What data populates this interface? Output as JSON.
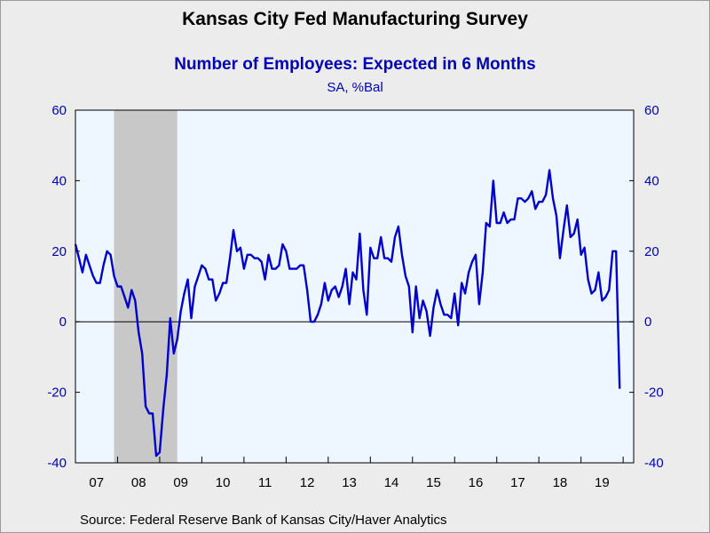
{
  "title": "Kansas City Fed Manufacturing Survey",
  "subtitle": "Number of Employees: Expected in 6 Months",
  "units": "SA, %Bal",
  "source": "Source:  Federal Reserve Bank of Kansas City/Haver Analytics",
  "colors": {
    "line": "#0000cc",
    "axis_text": "#0000b4",
    "plot_bg": "#eef6ff",
    "recession": "#c8c8c8"
  },
  "chart_data": {
    "type": "line",
    "title": "Number of Employees: Expected in 6 Months",
    "ylabel": "SA, %Bal",
    "ylim": [
      -40,
      60
    ],
    "yticks": [
      60,
      40,
      20,
      0,
      -20,
      -40
    ],
    "ytick_labels": [
      "60",
      "40",
      "20",
      "0",
      "-20",
      "-40"
    ],
    "dual_axis": true,
    "grid": false,
    "zero_line": true,
    "x_tick_labels": [
      "07",
      "08",
      "09",
      "10",
      "11",
      "12",
      "13",
      "14",
      "15",
      "16",
      "17",
      "18",
      "19"
    ],
    "x_start": "2007-01",
    "x_end": "2020-04",
    "recession": {
      "start": "2007-12",
      "end": "2009-06"
    },
    "series": [
      {
        "frequency": "monthly",
        "start": "2007-01",
        "values": [
          22,
          18,
          14,
          19,
          16,
          13,
          11,
          11,
          16,
          20,
          19,
          13,
          10,
          10,
          7,
          4,
          9,
          6,
          -3,
          -9,
          -24,
          -26,
          -26,
          -38,
          -37,
          -25,
          -15,
          1,
          -9,
          -5,
          3,
          8,
          12,
          1,
          10,
          13,
          16,
          15,
          12,
          12,
          6,
          8,
          11,
          11,
          18,
          26,
          20,
          21,
          15,
          19,
          19,
          18,
          18,
          17,
          12,
          19,
          15,
          15,
          16,
          22,
          20,
          15,
          15,
          15,
          16,
          16,
          9,
          0,
          0,
          2,
          5,
          11,
          6,
          9,
          10,
          7,
          10,
          15,
          5,
          14,
          12,
          25,
          9,
          2,
          21,
          18,
          18,
          24,
          18,
          18,
          17,
          24,
          27,
          19,
          13,
          10,
          -3,
          10,
          1,
          6,
          3,
          -4,
          4,
          9,
          5,
          2,
          2,
          1,
          8,
          -1,
          11,
          8,
          14,
          17,
          19,
          5,
          14,
          28,
          27,
          40,
          28,
          28,
          31,
          28,
          29,
          29,
          35,
          35,
          34,
          35,
          37,
          32,
          34,
          34,
          36,
          43,
          35,
          30,
          18,
          26,
          33,
          24,
          25,
          29,
          19,
          21,
          12,
          8,
          9,
          14,
          6,
          7,
          9,
          20,
          20,
          -19
        ]
      }
    ]
  }
}
